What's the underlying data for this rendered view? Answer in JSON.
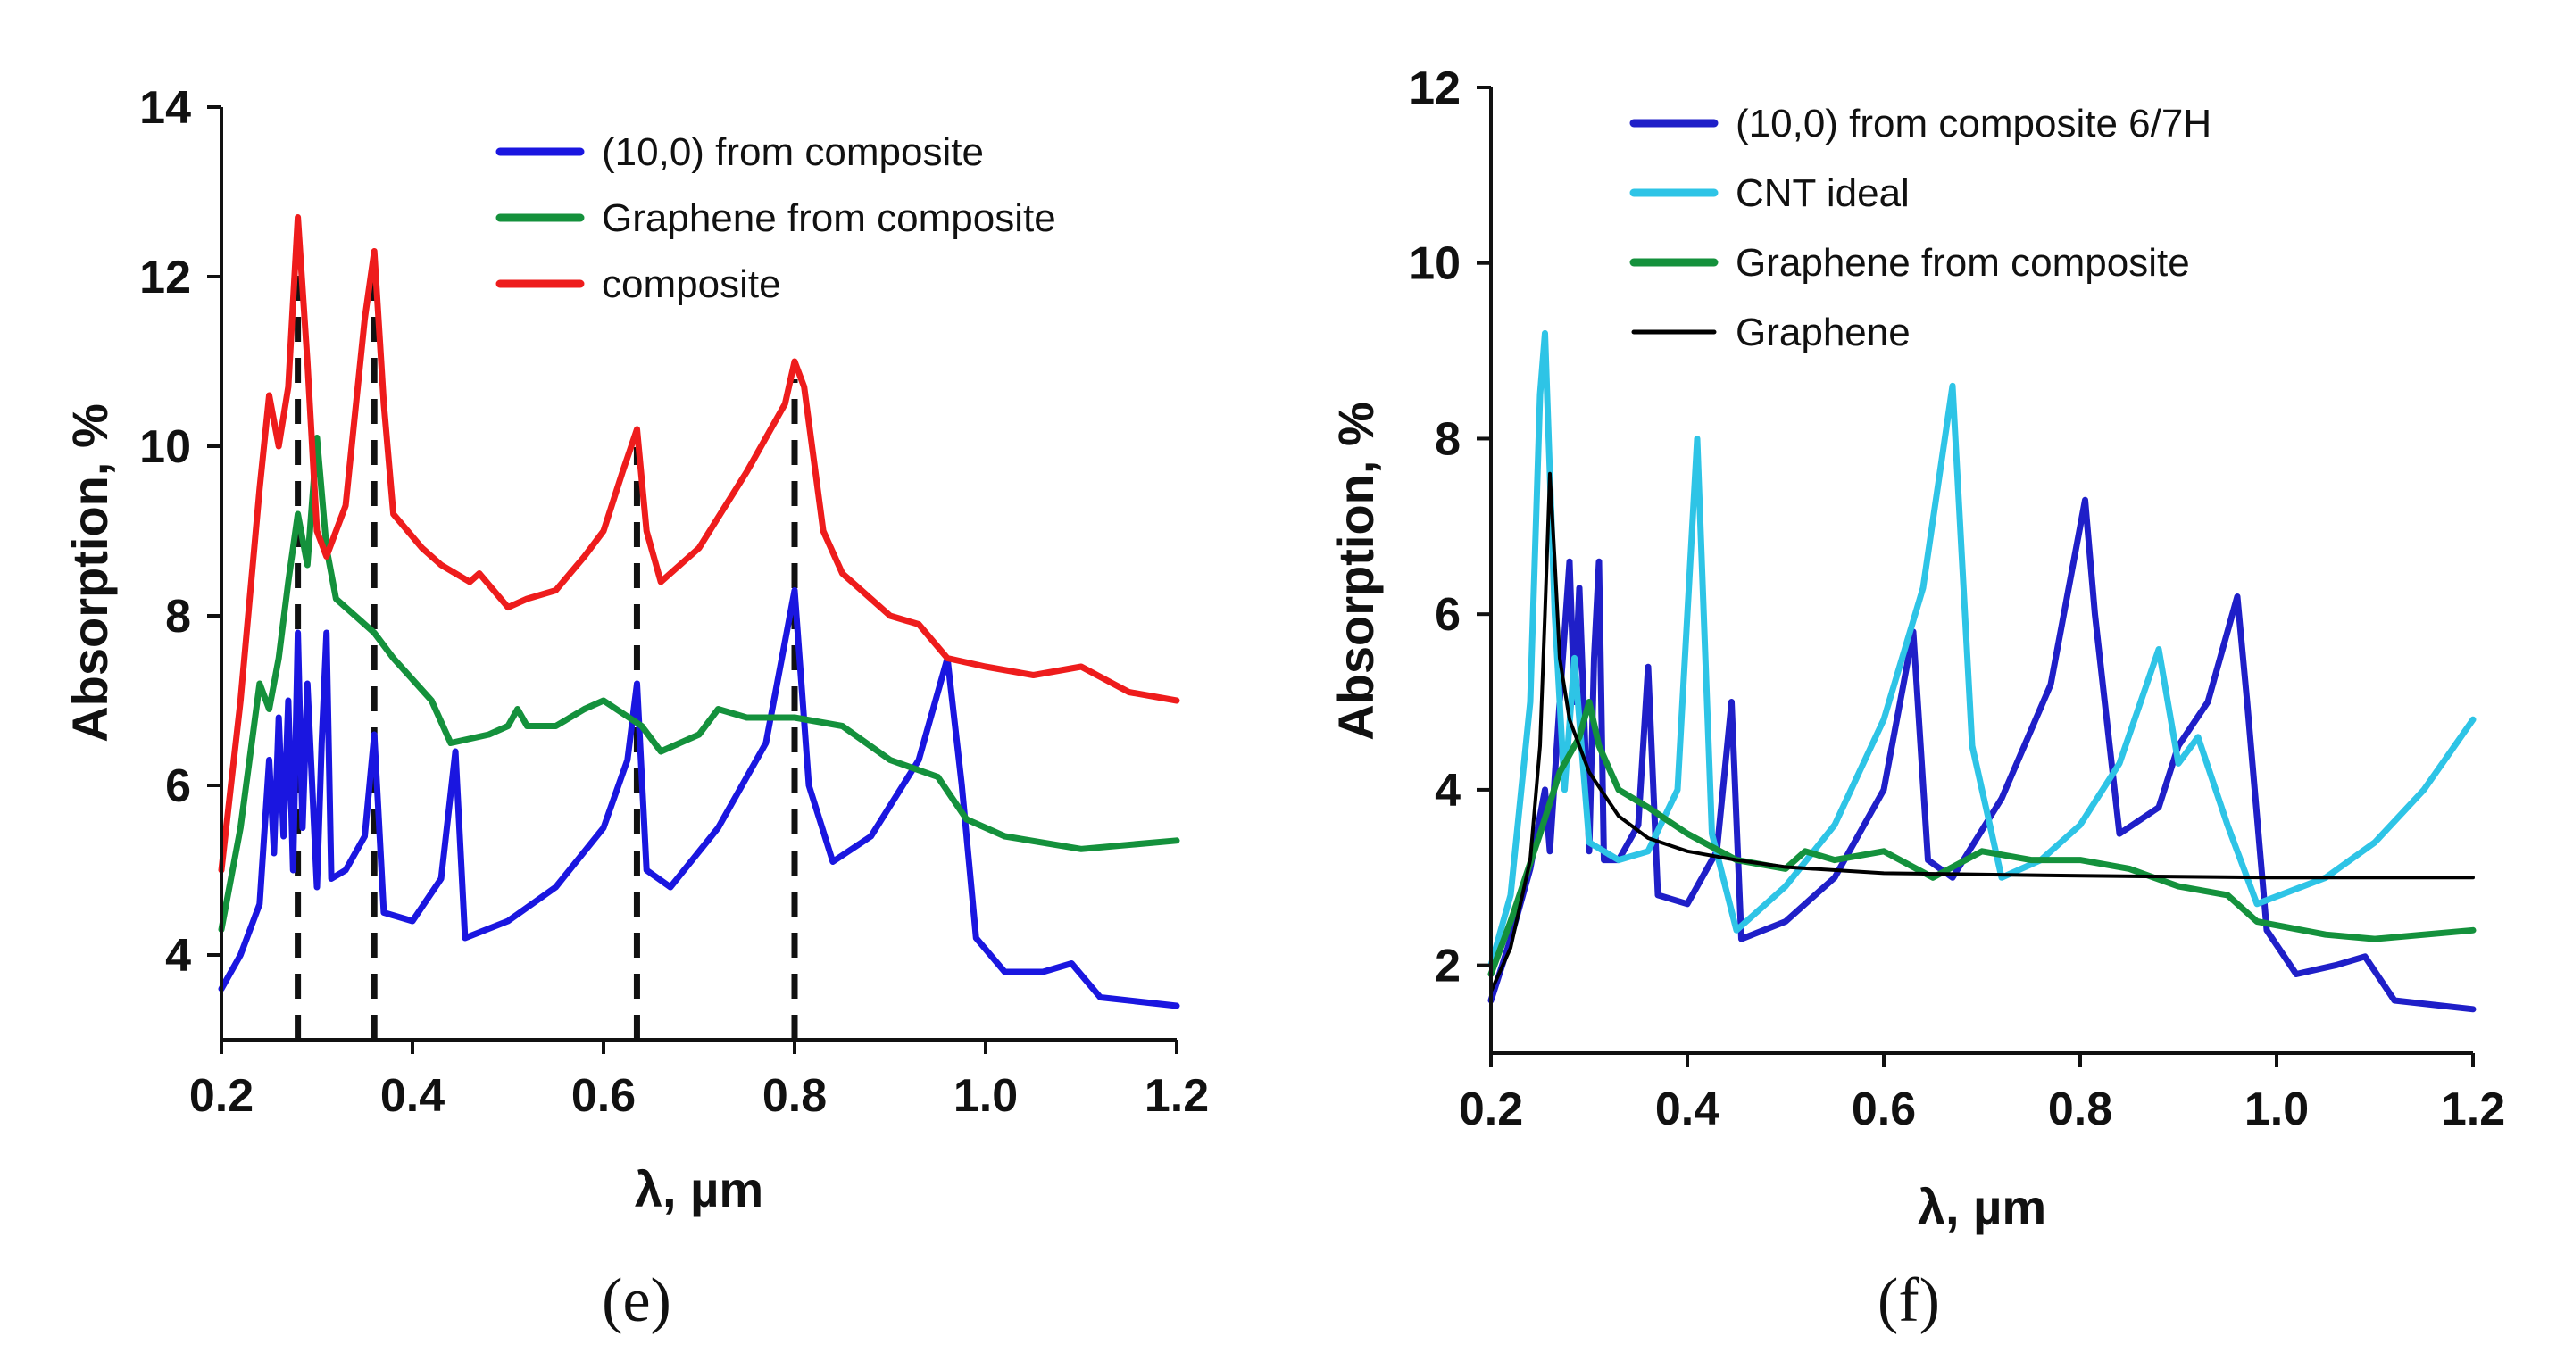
{
  "chart_data": [
    {
      "panel": "(e)",
      "type": "line",
      "xlabel": "λ, µm",
      "ylabel": "Absorption, %",
      "xlim": [
        0.2,
        1.2
      ],
      "ylim": [
        3,
        14
      ],
      "xticks": [
        0.2,
        0.4,
        0.6,
        0.8,
        1.0,
        1.2
      ],
      "xtick_labels": [
        "0.2",
        "0.4",
        "0.6",
        "0.8",
        "1.0",
        "1.2"
      ],
      "yticks": [
        4,
        6,
        8,
        10,
        12,
        14
      ],
      "ytick_labels": [
        "4",
        "6",
        "8",
        "10",
        "12",
        "14"
      ],
      "legend": "top-right",
      "vlines": [
        0.28,
        0.36,
        0.635,
        0.8
      ],
      "series": [
        {
          "name": "(10,0) from composite",
          "color": "#1a16e0",
          "points": [
            [
              0.2,
              3.6
            ],
            [
              0.22,
              4.0
            ],
            [
              0.24,
              4.6
            ],
            [
              0.25,
              6.3
            ],
            [
              0.255,
              5.2
            ],
            [
              0.26,
              6.8
            ],
            [
              0.265,
              5.4
            ],
            [
              0.27,
              7.0
            ],
            [
              0.275,
              5.0
            ],
            [
              0.28,
              7.8
            ],
            [
              0.285,
              5.5
            ],
            [
              0.29,
              7.2
            ],
            [
              0.3,
              4.8
            ],
            [
              0.305,
              6.5
            ],
            [
              0.31,
              7.8
            ],
            [
              0.315,
              4.9
            ],
            [
              0.33,
              5.0
            ],
            [
              0.35,
              5.4
            ],
            [
              0.36,
              6.6
            ],
            [
              0.37,
              4.5
            ],
            [
              0.4,
              4.4
            ],
            [
              0.43,
              4.9
            ],
            [
              0.445,
              6.4
            ],
            [
              0.455,
              4.2
            ],
            [
              0.5,
              4.4
            ],
            [
              0.55,
              4.8
            ],
            [
              0.6,
              5.5
            ],
            [
              0.625,
              6.3
            ],
            [
              0.635,
              7.2
            ],
            [
              0.645,
              5.0
            ],
            [
              0.67,
              4.8
            ],
            [
              0.72,
              5.5
            ],
            [
              0.77,
              6.5
            ],
            [
              0.8,
              8.3
            ],
            [
              0.815,
              6.0
            ],
            [
              0.84,
              5.1
            ],
            [
              0.88,
              5.4
            ],
            [
              0.93,
              6.3
            ],
            [
              0.96,
              7.5
            ],
            [
              0.975,
              6.0
            ],
            [
              0.99,
              4.2
            ],
            [
              1.02,
              3.8
            ],
            [
              1.06,
              3.8
            ],
            [
              1.09,
              3.9
            ],
            [
              1.12,
              3.5
            ],
            [
              1.2,
              3.4
            ]
          ]
        },
        {
          "name": "Graphene from composite",
          "color": "#14913c",
          "points": [
            [
              0.2,
              4.3
            ],
            [
              0.22,
              5.5
            ],
            [
              0.24,
              7.2
            ],
            [
              0.25,
              6.9
            ],
            [
              0.26,
              7.5
            ],
            [
              0.27,
              8.4
            ],
            [
              0.28,
              9.2
            ],
            [
              0.29,
              8.6
            ],
            [
              0.3,
              10.1
            ],
            [
              0.31,
              8.8
            ],
            [
              0.32,
              8.2
            ],
            [
              0.34,
              8.0
            ],
            [
              0.36,
              7.8
            ],
            [
              0.38,
              7.5
            ],
            [
              0.42,
              7.0
            ],
            [
              0.44,
              6.5
            ],
            [
              0.48,
              6.6
            ],
            [
              0.5,
              6.7
            ],
            [
              0.51,
              6.9
            ],
            [
              0.52,
              6.7
            ],
            [
              0.55,
              6.7
            ],
            [
              0.58,
              6.9
            ],
            [
              0.6,
              7.0
            ],
            [
              0.64,
              6.7
            ],
            [
              0.66,
              6.4
            ],
            [
              0.7,
              6.6
            ],
            [
              0.72,
              6.9
            ],
            [
              0.75,
              6.8
            ],
            [
              0.8,
              6.8
            ],
            [
              0.85,
              6.7
            ],
            [
              0.9,
              6.3
            ],
            [
              0.95,
              6.1
            ],
            [
              0.98,
              5.6
            ],
            [
              1.02,
              5.4
            ],
            [
              1.1,
              5.25
            ],
            [
              1.2,
              5.35
            ]
          ]
        },
        {
          "name": "composite",
          "color": "#ee1c1c",
          "points": [
            [
              0.2,
              5.0
            ],
            [
              0.22,
              7.0
            ],
            [
              0.24,
              9.5
            ],
            [
              0.25,
              10.6
            ],
            [
              0.26,
              10.0
            ],
            [
              0.27,
              10.7
            ],
            [
              0.28,
              12.7
            ],
            [
              0.29,
              11.0
            ],
            [
              0.3,
              9.0
            ],
            [
              0.31,
              8.7
            ],
            [
              0.33,
              9.3
            ],
            [
              0.35,
              11.5
            ],
            [
              0.36,
              12.3
            ],
            [
              0.37,
              10.5
            ],
            [
              0.38,
              9.2
            ],
            [
              0.41,
              8.8
            ],
            [
              0.43,
              8.6
            ],
            [
              0.46,
              8.4
            ],
            [
              0.47,
              8.5
            ],
            [
              0.5,
              8.1
            ],
            [
              0.52,
              8.2
            ],
            [
              0.55,
              8.3
            ],
            [
              0.58,
              8.7
            ],
            [
              0.6,
              9.0
            ],
            [
              0.62,
              9.7
            ],
            [
              0.635,
              10.2
            ],
            [
              0.645,
              9.0
            ],
            [
              0.66,
              8.4
            ],
            [
              0.7,
              8.8
            ],
            [
              0.75,
              9.7
            ],
            [
              0.79,
              10.5
            ],
            [
              0.8,
              11.0
            ],
            [
              0.81,
              10.7
            ],
            [
              0.83,
              9.0
            ],
            [
              0.85,
              8.5
            ],
            [
              0.9,
              8.0
            ],
            [
              0.93,
              7.9
            ],
            [
              0.96,
              7.5
            ],
            [
              1.0,
              7.4
            ],
            [
              1.05,
              7.3
            ],
            [
              1.1,
              7.4
            ],
            [
              1.15,
              7.1
            ],
            [
              1.2,
              7.0
            ]
          ]
        }
      ]
    },
    {
      "panel": "(f)",
      "type": "line",
      "xlabel": "λ, µm",
      "ylabel": "Absorption, %",
      "xlim": [
        0.2,
        1.2
      ],
      "ylim": [
        1,
        12
      ],
      "xticks": [
        0.2,
        0.4,
        0.6,
        0.8,
        1.0,
        1.2
      ],
      "xtick_labels": [
        "0.2",
        "0.4",
        "0.6",
        "0.8",
        "1.0",
        "1.2"
      ],
      "yticks": [
        2,
        4,
        6,
        8,
        10,
        12
      ],
      "ytick_labels": [
        "2",
        "4",
        "6",
        "8",
        "10",
        "12"
      ],
      "legend": "top-right",
      "series": [
        {
          "name": "(10,0) from composite 6/7H",
          "color": "#1f1fc8",
          "points": [
            [
              0.2,
              1.6
            ],
            [
              0.22,
              2.3
            ],
            [
              0.24,
              3.1
            ],
            [
              0.255,
              4.0
            ],
            [
              0.26,
              3.3
            ],
            [
              0.27,
              5.0
            ],
            [
              0.28,
              6.6
            ],
            [
              0.285,
              5.0
            ],
            [
              0.29,
              6.3
            ],
            [
              0.3,
              3.3
            ],
            [
              0.305,
              5.5
            ],
            [
              0.31,
              6.6
            ],
            [
              0.315,
              3.2
            ],
            [
              0.33,
              3.2
            ],
            [
              0.35,
              3.6
            ],
            [
              0.36,
              5.4
            ],
            [
              0.37,
              2.8
            ],
            [
              0.4,
              2.7
            ],
            [
              0.43,
              3.3
            ],
            [
              0.445,
              5.0
            ],
            [
              0.455,
              2.3
            ],
            [
              0.5,
              2.5
            ],
            [
              0.55,
              3.0
            ],
            [
              0.6,
              4.0
            ],
            [
              0.63,
              5.8
            ],
            [
              0.645,
              3.2
            ],
            [
              0.67,
              3.0
            ],
            [
              0.72,
              3.9
            ],
            [
              0.77,
              5.2
            ],
            [
              0.8,
              7.0
            ],
            [
              0.805,
              7.3
            ],
            [
              0.815,
              6.0
            ],
            [
              0.84,
              3.5
            ],
            [
              0.88,
              3.8
            ],
            [
              0.9,
              4.5
            ],
            [
              0.93,
              5.0
            ],
            [
              0.96,
              6.2
            ],
            [
              0.97,
              5.0
            ],
            [
              0.99,
              2.4
            ],
            [
              1.02,
              1.9
            ],
            [
              1.06,
              2.0
            ],
            [
              1.09,
              2.1
            ],
            [
              1.12,
              1.6
            ],
            [
              1.2,
              1.5
            ]
          ]
        },
        {
          "name": "CNT ideal",
          "color": "#2ec4e6",
          "points": [
            [
              0.2,
              2.0
            ],
            [
              0.22,
              2.8
            ],
            [
              0.24,
              5.0
            ],
            [
              0.25,
              8.5
            ],
            [
              0.255,
              9.2
            ],
            [
              0.265,
              6.0
            ],
            [
              0.275,
              4.0
            ],
            [
              0.285,
              5.5
            ],
            [
              0.3,
              3.4
            ],
            [
              0.33,
              3.2
            ],
            [
              0.36,
              3.3
            ],
            [
              0.39,
              4.0
            ],
            [
              0.41,
              8.0
            ],
            [
              0.425,
              3.5
            ],
            [
              0.45,
              2.4
            ],
            [
              0.5,
              2.9
            ],
            [
              0.55,
              3.6
            ],
            [
              0.6,
              4.8
            ],
            [
              0.64,
              6.3
            ],
            [
              0.67,
              8.6
            ],
            [
              0.69,
              4.5
            ],
            [
              0.72,
              3.0
            ],
            [
              0.76,
              3.2
            ],
            [
              0.8,
              3.6
            ],
            [
              0.84,
              4.3
            ],
            [
              0.88,
              5.6
            ],
            [
              0.9,
              4.3
            ],
            [
              0.92,
              4.6
            ],
            [
              0.95,
              3.6
            ],
            [
              0.98,
              2.7
            ],
            [
              1.05,
              3.0
            ],
            [
              1.1,
              3.4
            ],
            [
              1.15,
              4.0
            ],
            [
              1.2,
              4.8
            ]
          ]
        },
        {
          "name": "Graphene from composite",
          "color": "#14913c",
          "points": [
            [
              0.2,
              1.9
            ],
            [
              0.22,
              2.5
            ],
            [
              0.25,
              3.5
            ],
            [
              0.27,
              4.2
            ],
            [
              0.29,
              4.6
            ],
            [
              0.3,
              5.0
            ],
            [
              0.31,
              4.5
            ],
            [
              0.33,
              4.0
            ],
            [
              0.36,
              3.8
            ],
            [
              0.4,
              3.5
            ],
            [
              0.45,
              3.2
            ],
            [
              0.5,
              3.1
            ],
            [
              0.52,
              3.3
            ],
            [
              0.55,
              3.2
            ],
            [
              0.6,
              3.3
            ],
            [
              0.65,
              3.0
            ],
            [
              0.7,
              3.3
            ],
            [
              0.75,
              3.2
            ],
            [
              0.8,
              3.2
            ],
            [
              0.85,
              3.1
            ],
            [
              0.9,
              2.9
            ],
            [
              0.95,
              2.8
            ],
            [
              0.98,
              2.5
            ],
            [
              1.05,
              2.35
            ],
            [
              1.1,
              2.3
            ],
            [
              1.2,
              2.4
            ]
          ]
        },
        {
          "name": "Graphene",
          "color": "#000000",
          "points": [
            [
              0.2,
              1.7
            ],
            [
              0.22,
              2.2
            ],
            [
              0.24,
              3.2
            ],
            [
              0.25,
              4.5
            ],
            [
              0.255,
              6.0
            ],
            [
              0.26,
              7.6
            ],
            [
              0.265,
              6.6
            ],
            [
              0.27,
              5.5
            ],
            [
              0.28,
              4.8
            ],
            [
              0.3,
              4.2
            ],
            [
              0.33,
              3.7
            ],
            [
              0.36,
              3.45
            ],
            [
              0.4,
              3.3
            ],
            [
              0.45,
              3.2
            ],
            [
              0.5,
              3.12
            ],
            [
              0.6,
              3.05
            ],
            [
              0.8,
              3.02
            ],
            [
              1.0,
              3.0
            ],
            [
              1.2,
              3.0
            ]
          ]
        }
      ]
    }
  ]
}
